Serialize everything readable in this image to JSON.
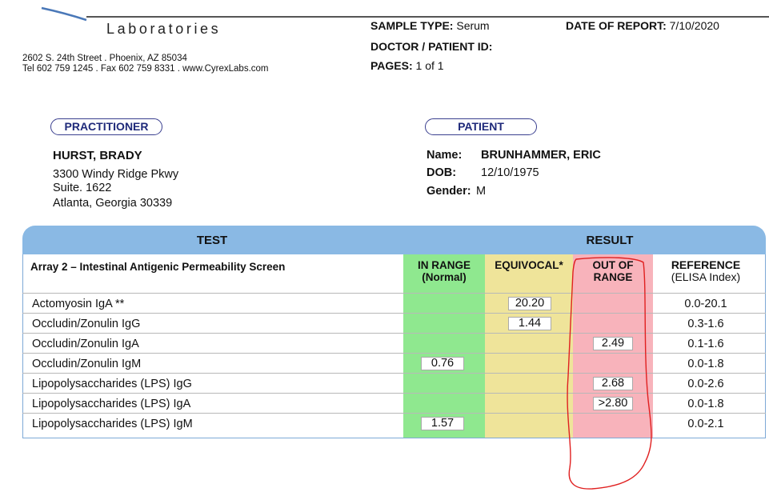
{
  "lab": {
    "name": "Laboratories",
    "address_line1": "2602 S. 24th Street . Phoenix, AZ 85034",
    "address_line2": "Tel 602 759 1245 . Fax 602 759 8331 . www.CyrexLabs.com"
  },
  "meta": {
    "sample_type_label": "SAMPLE TYPE:",
    "sample_type_value": "Serum",
    "date_label": "DATE OF REPORT:",
    "date_value": "7/10/2020",
    "doctor_patient_label": "DOCTOR / PATIENT ID:",
    "pages_label": "PAGES:",
    "pages_value": "1 of 1"
  },
  "practitioner": {
    "heading": "PRACTITIONER",
    "name": "HURST, BRADY",
    "address1": "3300 Windy Ridge Pkwy",
    "address2": "Suite. 1622",
    "address3": "Atlanta, Georgia 30339"
  },
  "patient": {
    "heading": "PATIENT",
    "name_label": "Name:",
    "name_value": "BRUNHAMMER, ERIC",
    "dob_label": "DOB:",
    "dob_value": "12/10/1975",
    "gender_label": "Gender:",
    "gender_value": "M"
  },
  "table": {
    "header_test": "TEST",
    "header_result": "RESULT",
    "panel_name": "Array 2 – Intestinal Antigenic Permeability Screen",
    "col_in_range_1": "IN RANGE",
    "col_in_range_2": "(Normal)",
    "col_equivocal": "EQUIVOCAL*",
    "col_out_of_range_1": "OUT OF",
    "col_out_of_range_2": "RANGE",
    "col_reference_1": "REFERENCE",
    "col_reference_2": "(ELISA Index)",
    "rows": [
      {
        "test": "Actomyosin IgA **",
        "in_range": "",
        "equivocal": "20.20",
        "out_of_range": "",
        "reference": "0.0-20.1"
      },
      {
        "test": "Occludin/Zonulin IgG",
        "in_range": "",
        "equivocal": "1.44",
        "out_of_range": "",
        "reference": "0.3-1.6"
      },
      {
        "test": "Occludin/Zonulin IgA",
        "in_range": "",
        "equivocal": "",
        "out_of_range": "2.49",
        "reference": "0.1-1.6"
      },
      {
        "test": "Occludin/Zonulin IgM",
        "in_range": "0.76",
        "equivocal": "",
        "out_of_range": "",
        "reference": "0.0-1.8"
      },
      {
        "test": "Lipopolysaccharides (LPS) IgG",
        "in_range": "",
        "equivocal": "",
        "out_of_range": "2.68",
        "reference": "0.0-2.6"
      },
      {
        "test": "Lipopolysaccharides (LPS) IgA",
        "in_range": "",
        "equivocal": "",
        "out_of_range": ">2.80",
        "reference": "0.0-1.8"
      },
      {
        "test": "Lipopolysaccharides (LPS) IgM",
        "in_range": "1.57",
        "equivocal": "",
        "out_of_range": "",
        "reference": "0.0-2.1"
      }
    ]
  },
  "colors": {
    "header_blue": "#8ab9e4",
    "in_range_green": "#8fe88f",
    "equivocal_yellow": "#efe49a",
    "out_of_range_pink": "#f8b3bb",
    "annotation_red": "#e02020",
    "pill_border": "#3a3f8f"
  }
}
